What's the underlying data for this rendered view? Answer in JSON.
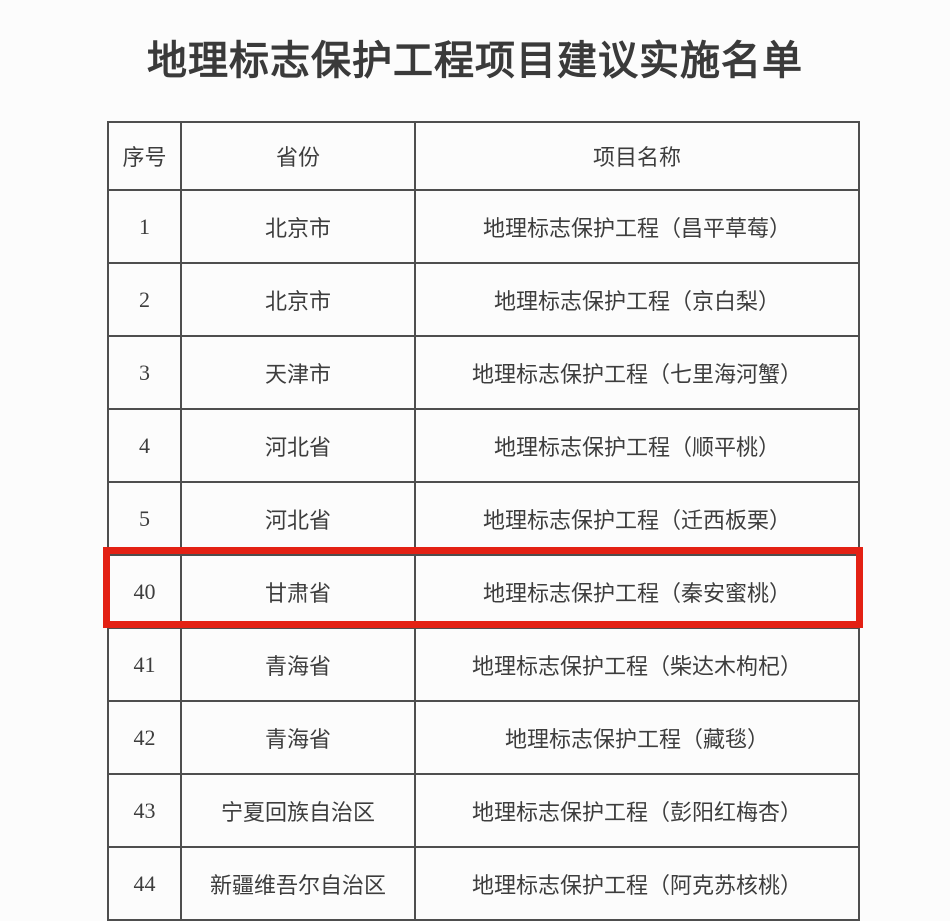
{
  "page": {
    "title": "地理标志保护工程项目建议实施名单"
  },
  "table": {
    "columns": [
      "序号",
      "省份",
      "项目名称"
    ],
    "rows": [
      {
        "no": "1",
        "province": "北京市",
        "project": "地理标志保护工程（昌平草莓）",
        "highlighted": false
      },
      {
        "no": "2",
        "province": "北京市",
        "project": "地理标志保护工程（京白梨）",
        "highlighted": false
      },
      {
        "no": "3",
        "province": "天津市",
        "project": "地理标志保护工程（七里海河蟹）",
        "highlighted": false
      },
      {
        "no": "4",
        "province": "河北省",
        "project": "地理标志保护工程（顺平桃）",
        "highlighted": false
      },
      {
        "no": "5",
        "province": "河北省",
        "project": "地理标志保护工程（迁西板栗）",
        "highlighted": false
      },
      {
        "no": "40",
        "province": "甘肃省",
        "project": "地理标志保护工程（秦安蜜桃）",
        "highlighted": true
      },
      {
        "no": "41",
        "province": "青海省",
        "project": "地理标志保护工程（柴达木枸杞）",
        "highlighted": false
      },
      {
        "no": "42",
        "province": "青海省",
        "project": "地理标志保护工程（藏毯）",
        "highlighted": false
      },
      {
        "no": "43",
        "province": "宁夏回族自治区",
        "project": "地理标志保护工程（彭阳红梅杏）",
        "highlighted": false
      },
      {
        "no": "44",
        "province": "新疆维吾尔自治区",
        "project": "地理标志保护工程（阿克苏核桃）",
        "highlighted": false
      }
    ]
  },
  "colors": {
    "highlight_border": "#e32114",
    "table_border": "#4e4e4e",
    "text": "#3d3d3d",
    "background": "#fcfcfc"
  }
}
